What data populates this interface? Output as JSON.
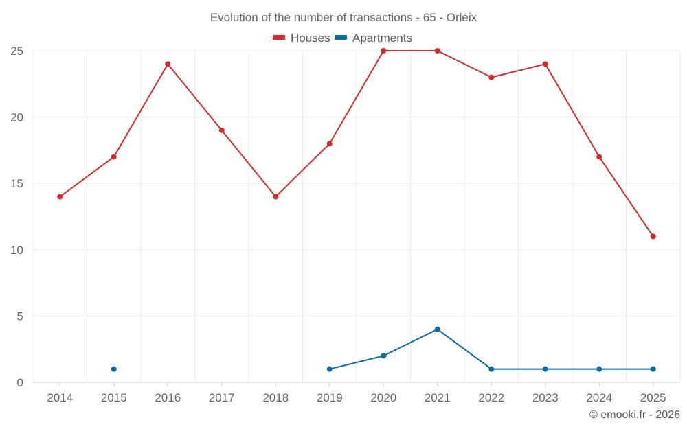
{
  "chart_data": {
    "type": "line",
    "title": "Evolution of the number of transactions - 65 - Orleix",
    "categories": [
      "2014",
      "2015",
      "2016",
      "2017",
      "2018",
      "2019",
      "2020",
      "2021",
      "2022",
      "2023",
      "2024",
      "2025"
    ],
    "yticks": [
      "0",
      "5",
      "10",
      "15",
      "20",
      "25"
    ],
    "ylim": [
      0,
      25
    ],
    "grid": true,
    "legend_position": "top-center",
    "series": [
      {
        "name": "Houses",
        "color": "#d32a2a",
        "values": [
          14,
          17,
          24,
          19,
          14,
          18,
          25,
          25,
          23,
          24,
          17,
          11
        ]
      },
      {
        "name": "Apartments",
        "color": "#0b6a9e",
        "values": [
          null,
          1,
          null,
          null,
          null,
          1,
          2,
          4,
          1,
          1,
          1,
          1
        ]
      }
    ]
  },
  "credit": "© emooki.fr - 2026"
}
